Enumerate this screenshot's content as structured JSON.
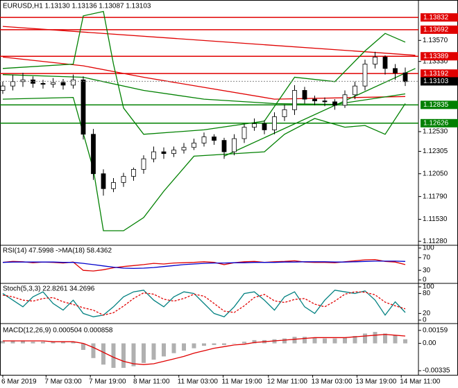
{
  "chart_data": [
    {
      "type": "candlestick",
      "title": "EURUSD,H1  1.13130 1.13136 1.13087 1.13103",
      "ylim": [
        1.1125,
        1.1392
      ],
      "yticks": [
        {
          "value": 1.1128,
          "label": "1.11280"
        },
        {
          "value": 1.1153,
          "label": "1.11530"
        },
        {
          "value": 1.1179,
          "label": "1.11790"
        },
        {
          "value": 1.1205,
          "label": "1.12050"
        },
        {
          "value": 1.12305,
          "label": "1.12305"
        },
        {
          "value": 1.1253,
          "label": "1.12530"
        },
        {
          "value": 1.1333,
          "label": "1.13330"
        },
        {
          "value": 1.1357,
          "label": "1.13570"
        }
      ],
      "xticks": [
        {
          "value": 0,
          "label": "6 Mar 2019"
        },
        {
          "value": 4.3,
          "label": "7 Mar 03:00"
        },
        {
          "value": 8.7,
          "label": "7 Mar 19:00"
        },
        {
          "value": 13.1,
          "label": "8 Mar 11:00"
        },
        {
          "value": 17.5,
          "label": "11 Mar 03:00"
        },
        {
          "value": 21.9,
          "label": "11 Mar 19:00"
        },
        {
          "value": 26.4,
          "label": "12 Mar 11:00"
        },
        {
          "value": 30.8,
          "label": "13 Mar 03:00"
        },
        {
          "value": 35.2,
          "label": "13 Mar 19:00"
        },
        {
          "value": 39.6,
          "label": "14 Mar 11:00"
        }
      ],
      "bull_color": "#ffffff",
      "bear_color": "#000000",
      "open": [
        1.13,
        1.1305,
        1.131,
        1.1312,
        1.1308,
        1.1307,
        1.1309,
        1.1306,
        1.1312,
        1.125,
        1.1205,
        1.1188,
        1.1195,
        1.1202,
        1.121,
        1.1222,
        1.123,
        1.1228,
        1.1232,
        1.1235,
        1.124,
        1.1247,
        1.1243,
        1.123,
        1.1245,
        1.1258,
        1.1262,
        1.1255,
        1.127,
        1.1278,
        1.13,
        1.129,
        1.1288,
        1.1287,
        1.1283,
        1.1295,
        1.1305,
        1.133,
        1.1338,
        1.1325,
        1.132
      ],
      "high": [
        1.131,
        1.1318,
        1.132,
        1.1316,
        1.1312,
        1.1314,
        1.1313,
        1.1318,
        1.1316,
        1.1256,
        1.121,
        1.12,
        1.1206,
        1.1212,
        1.1226,
        1.1236,
        1.1235,
        1.1236,
        1.124,
        1.1245,
        1.1252,
        1.125,
        1.1246,
        1.125,
        1.1262,
        1.1268,
        1.1266,
        1.1275,
        1.1284,
        1.1306,
        1.1304,
        1.1294,
        1.1292,
        1.129,
        1.13,
        1.131,
        1.1335,
        1.1344,
        1.134,
        1.133,
        1.1326
      ],
      "low": [
        1.1296,
        1.13,
        1.1304,
        1.1303,
        1.1302,
        1.1303,
        1.1301,
        1.1302,
        1.1244,
        1.1198,
        1.118,
        1.1184,
        1.119,
        1.1197,
        1.1205,
        1.1218,
        1.1222,
        1.1224,
        1.1228,
        1.1232,
        1.1236,
        1.1238,
        1.1222,
        1.1226,
        1.124,
        1.1254,
        1.125,
        1.125,
        1.1265,
        1.1272,
        1.1285,
        1.1283,
        1.1282,
        1.1278,
        1.128,
        1.129,
        1.13,
        1.1325,
        1.1318,
        1.1312,
        1.1305
      ],
      "close": [
        1.1305,
        1.131,
        1.1312,
        1.1308,
        1.1307,
        1.1309,
        1.1306,
        1.1312,
        1.125,
        1.1205,
        1.1188,
        1.1195,
        1.1202,
        1.121,
        1.1222,
        1.123,
        1.1228,
        1.1232,
        1.1235,
        1.124,
        1.1247,
        1.1243,
        1.123,
        1.1245,
        1.1258,
        1.1262,
        1.1255,
        1.127,
        1.1278,
        1.13,
        1.129,
        1.1288,
        1.1287,
        1.1283,
        1.1295,
        1.1305,
        1.133,
        1.1338,
        1.1325,
        1.132,
        1.131
      ],
      "overlays": [
        {
          "color": "#e00000",
          "x": [
            0,
            8,
            14,
            27,
            40
          ],
          "values": [
            1.1338,
            1.1328,
            1.1315,
            1.129,
            1.1293
          ]
        },
        {
          "color": "#e00000",
          "x": [
            0,
            41
          ],
          "values": [
            1.1373,
            1.134
          ]
        },
        {
          "color": "#008000",
          "x": [
            0,
            8,
            14,
            20,
            27,
            33,
            40
          ],
          "values": [
            1.1318,
            1.1315,
            1.13,
            1.129,
            1.1285,
            1.1284,
            1.1296
          ]
        },
        {
          "color": "#008000",
          "x": [
            0,
            7,
            8,
            10,
            11,
            12,
            14,
            20,
            26,
            29,
            33,
            36,
            38,
            40
          ],
          "values": [
            1.1325,
            1.133,
            1.1385,
            1.139,
            1.133,
            1.128,
            1.125,
            1.1255,
            1.1265,
            1.1315,
            1.131,
            1.1345,
            1.1365,
            1.1355
          ]
        },
        {
          "color": "#008000",
          "x": [
            0,
            7,
            9,
            10,
            12,
            14,
            16,
            19,
            26,
            28,
            31,
            34,
            36,
            38,
            40
          ],
          "values": [
            1.129,
            1.1292,
            1.121,
            1.114,
            1.114,
            1.1155,
            1.1185,
            1.1225,
            1.123,
            1.125,
            1.1268,
            1.1258,
            1.126,
            1.125,
            1.1285
          ]
        },
        {
          "color": "#008000",
          "x": [
            22,
            41
          ],
          "values": [
            1.1225,
            1.1325
          ]
        }
      ],
      "levels": [
        {
          "value": 1.13832,
          "color": "#e00000"
        },
        {
          "value": 1.13692,
          "color": "#e00000"
        },
        {
          "value": 1.13389,
          "color": "#e00000"
        },
        {
          "value": 1.13192,
          "color": "#e00000"
        },
        {
          "value": 1.12835,
          "color": "#008000"
        },
        {
          "value": 1.12626,
          "color": "#008000"
        }
      ],
      "current_price": 1.13103
    },
    {
      "type": "line",
      "title": "RSI(14) 47.5998 ->MA(18) 58.4362",
      "ylim": [
        0,
        100
      ],
      "yticks": [
        100,
        70,
        30,
        0
      ],
      "series": [
        {
          "color": "#e00000",
          "values": [
            55,
            58,
            57,
            54,
            56,
            55,
            53,
            56,
            30,
            28,
            32,
            38,
            42,
            45,
            48,
            52,
            50,
            53,
            54,
            55,
            57,
            55,
            48,
            54,
            57,
            58,
            55,
            57,
            58,
            60,
            56,
            55,
            55,
            54,
            57,
            60,
            63,
            64,
            58,
            56,
            48
          ]
        },
        {
          "color": "#0000cc",
          "values": [
            55,
            56,
            56,
            56,
            56,
            56,
            55,
            55,
            52,
            48,
            44,
            40,
            37,
            36,
            37,
            39,
            42,
            45,
            48,
            50,
            52,
            53,
            53,
            54,
            54,
            55,
            55,
            55,
            56,
            56,
            57,
            57,
            57,
            56,
            56,
            57,
            58,
            59,
            59,
            59,
            58
          ]
        }
      ]
    },
    {
      "type": "line",
      "title": "Stoch(5,3,3) 22.8261 34.2696",
      "ylim": [
        0,
        100
      ],
      "yticks": [
        100,
        80,
        20,
        0
      ],
      "series": [
        {
          "color": "#008080",
          "values": [
            80,
            60,
            40,
            70,
            85,
            50,
            30,
            60,
            20,
            10,
            15,
            40,
            70,
            85,
            90,
            60,
            40,
            70,
            85,
            80,
            50,
            20,
            10,
            40,
            80,
            85,
            60,
            30,
            70,
            85,
            40,
            20,
            60,
            90,
            85,
            80,
            88,
            60,
            15,
            55,
            23
          ]
        },
        {
          "color": "#e00000",
          "dashed": true,
          "values": [
            75,
            70,
            60,
            57,
            65,
            68,
            55,
            47,
            37,
            30,
            15,
            22,
            42,
            65,
            82,
            78,
            63,
            57,
            65,
            78,
            72,
            50,
            27,
            23,
            43,
            68,
            77,
            58,
            53,
            62,
            65,
            48,
            40,
            57,
            78,
            85,
            84,
            76,
            54,
            43,
            34
          ]
        }
      ]
    },
    {
      "type": "bar",
      "title": "MACD(12,26,9) 0.000504 0.000858",
      "ylim": [
        -0.0036,
        0.002
      ],
      "yticks": [
        0.00159,
        {
          "value": 0,
          "label": "0.00"
        },
        -0.00335
      ],
      "color": "#b0b0b0",
      "values": [
        0.0003,
        0.0003,
        0.0003,
        0.0002,
        0.0002,
        0.0002,
        0.0002,
        0.0002,
        -0.0008,
        -0.0018,
        -0.0026,
        -0.003,
        -0.003,
        -0.0028,
        -0.0024,
        -0.002,
        -0.0016,
        -0.0012,
        -0.0009,
        -0.0006,
        -0.0003,
        -0.0002,
        -0.0002,
        0,
        0.0002,
        0.0004,
        0.0004,
        0.0005,
        0.0006,
        0.0008,
        0.0008,
        0.0007,
        0.0006,
        0.0006,
        0.0007,
        0.0009,
        0.0012,
        0.0014,
        0.0012,
        0.001,
        0.0005
      ],
      "series": [
        {
          "color": "#e00000",
          "values": [
            0.0003,
            0.0003,
            0.0003,
            0.0003,
            0.0003,
            0.0002,
            0.0002,
            0.0002,
            0.0,
            -0.0005,
            -0.0011,
            -0.0017,
            -0.0022,
            -0.0025,
            -0.0026,
            -0.0025,
            -0.0022,
            -0.0019,
            -0.0016,
            -0.0012,
            -0.0009,
            -0.0006,
            -0.0004,
            -0.0002,
            -0.0001,
            0.0001,
            0.0002,
            0.0003,
            0.0004,
            0.0005,
            0.0006,
            0.0007,
            0.0007,
            0.0007,
            0.0007,
            0.0008,
            0.0009,
            0.001,
            0.0011,
            0.001,
            0.0009
          ]
        }
      ]
    }
  ]
}
